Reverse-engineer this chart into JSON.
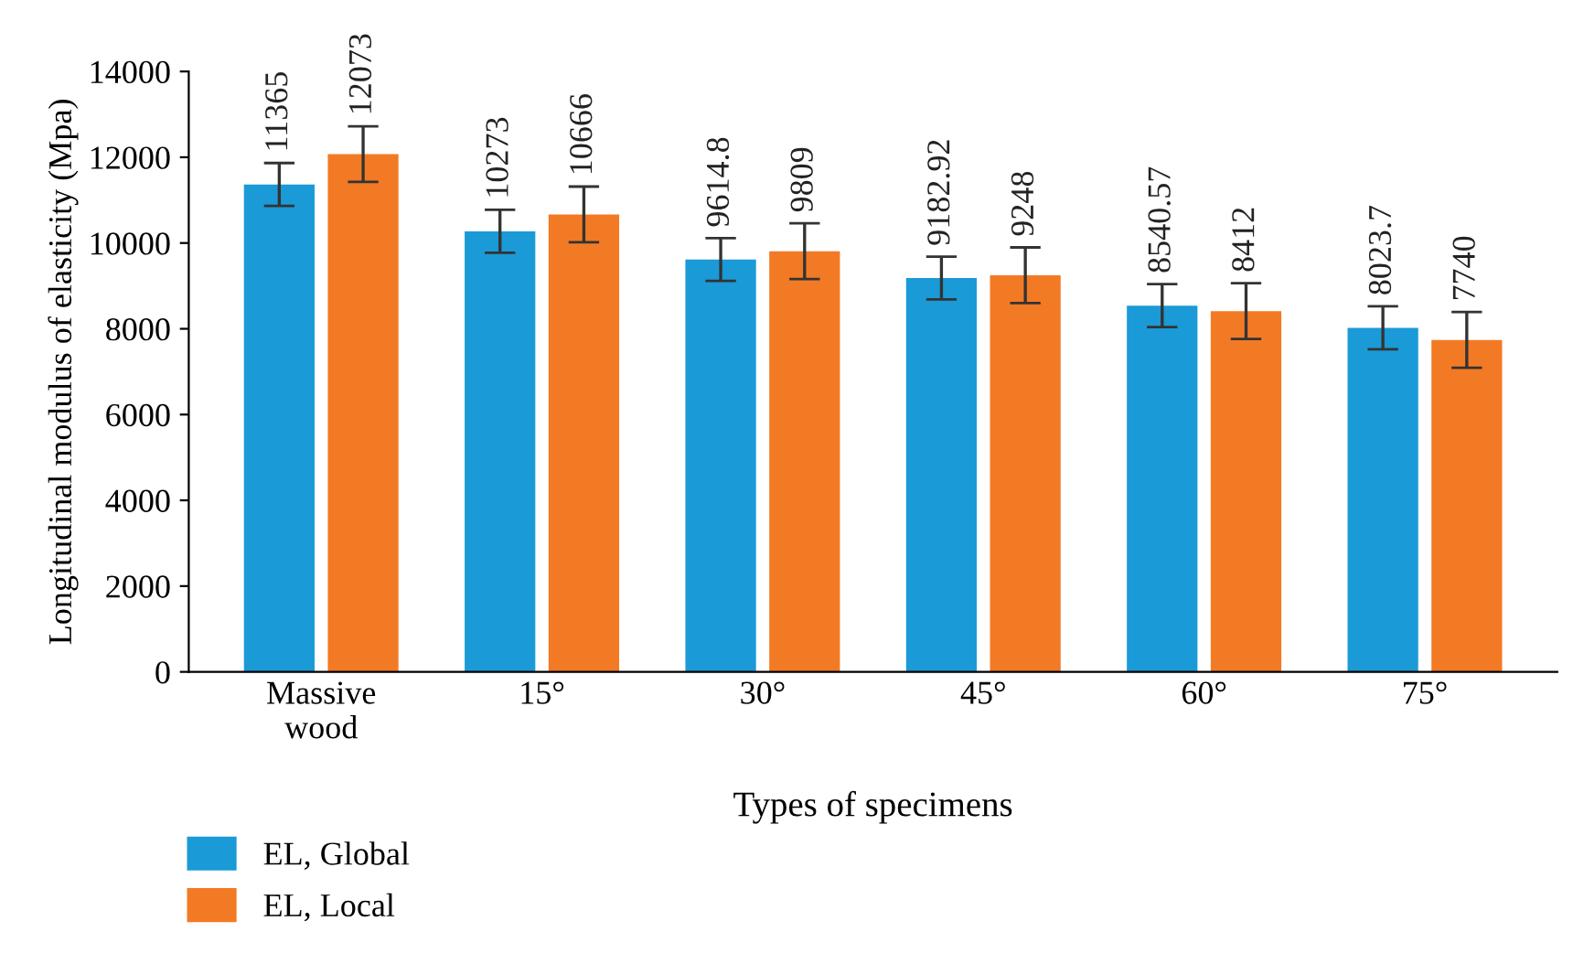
{
  "chart_data": {
    "type": "bar",
    "xlabel": "Types of specimens",
    "ylabel": "Longitudinal modulus of elasticity (Mpa)",
    "categories": [
      "Massive\nwood",
      "15°",
      "30°",
      "45°",
      "60°",
      "75°"
    ],
    "series": [
      {
        "name": "EL, Global",
        "color": "#1a9ad6",
        "values": [
          11365,
          10273,
          9614.8,
          9182.92,
          8540.57,
          8023.7
        ],
        "errors": [
          500,
          500,
          500,
          500,
          500,
          500
        ]
      },
      {
        "name": "EL, Local",
        "color": "#f37a24",
        "values": [
          12073,
          10666,
          9809,
          9248,
          8412,
          7740
        ],
        "errors": [
          650,
          650,
          650,
          650,
          650,
          650
        ]
      }
    ],
    "ylim": [
      0,
      14000
    ],
    "yticks": [
      0,
      2000,
      4000,
      6000,
      8000,
      10000,
      12000,
      14000
    ],
    "data_labels": true,
    "grid": false,
    "legend": "bottom left"
  }
}
